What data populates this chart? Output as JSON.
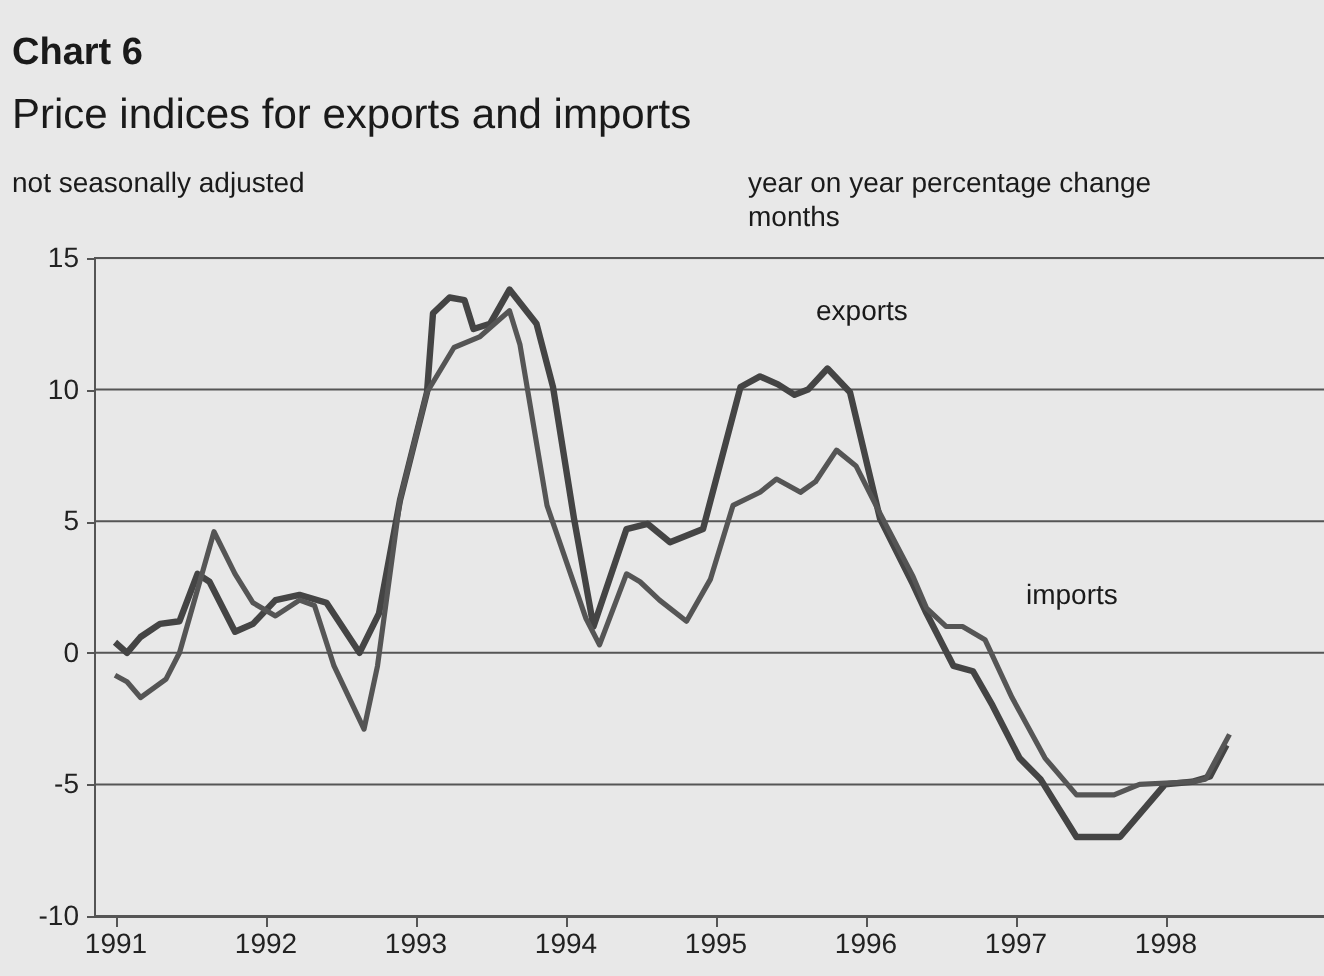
{
  "chart_data": {
    "type": "line",
    "title": "Chart 6",
    "subtitle": "Price indices for exports and imports",
    "annotations": [
      "not seasonally adjusted",
      "year on year percentage change",
      "months",
      "exports",
      "imports"
    ],
    "series": [
      {
        "color": "#444444",
        "x": [
          1991.0,
          1991.08,
          1991.17,
          1991.3,
          1991.43,
          1991.55,
          1991.63,
          1991.8,
          1991.92,
          1992.07,
          1992.23,
          1992.41,
          1992.63,
          1992.76,
          1992.9,
          1993.08,
          1993.12,
          1993.23,
          1993.33,
          1993.39,
          1993.5,
          1993.63,
          1993.81,
          1993.92,
          1994.06,
          1994.19,
          1994.41,
          1994.55,
          1994.7,
          1994.92,
          1995.17,
          1995.3,
          1995.42,
          1995.53,
          1995.62,
          1995.75,
          1995.9,
          1996.1,
          1996.32,
          1996.41,
          1996.59,
          1996.72,
          1996.85,
          1997.03,
          1997.17,
          1997.41,
          1997.7,
          1998.0,
          1998.18,
          1998.3,
          1998.41
        ],
        "values": [
          0.4,
          0.0,
          0.6,
          1.1,
          1.2,
          3.0,
          2.7,
          0.8,
          1.1,
          2.0,
          2.2,
          1.9,
          0.0,
          1.5,
          5.8,
          9.9,
          12.9,
          13.5,
          13.4,
          12.3,
          12.5,
          13.8,
          12.5,
          10.1,
          5.1,
          1.0,
          4.7,
          4.9,
          4.2,
          4.7,
          10.1,
          10.5,
          10.2,
          9.8,
          10.0,
          10.8,
          9.9,
          5.1,
          2.6,
          1.5,
          -0.5,
          -0.7,
          -2.0,
          -4.0,
          -4.8,
          -7.0,
          -7.0,
          -5.0,
          -4.9,
          -4.7,
          -3.5
        ]
      },
      {
        "color": "#555555",
        "x": [
          1991.0,
          1991.08,
          1991.17,
          1991.34,
          1991.43,
          1991.57,
          1991.66,
          1991.8,
          1991.92,
          1992.07,
          1992.23,
          1992.33,
          1992.46,
          1992.66,
          1992.75,
          1992.9,
          1993.08,
          1993.26,
          1993.43,
          1993.63,
          1993.7,
          1993.88,
          1994.14,
          1994.23,
          1994.41,
          1994.5,
          1994.63,
          1994.81,
          1994.97,
          1995.12,
          1995.3,
          1995.41,
          1995.57,
          1995.67,
          1995.81,
          1995.94,
          1996.1,
          1996.32,
          1996.41,
          1996.54,
          1996.65,
          1996.8,
          1996.98,
          1997.2,
          1997.41,
          1997.66,
          1997.83,
          1998.18,
          1998.27,
          1998.43
        ],
        "values": [
          -0.85,
          -1.1,
          -1.7,
          -1.0,
          0.0,
          2.8,
          4.6,
          3.0,
          1.9,
          1.4,
          2.0,
          1.8,
          -0.5,
          -2.9,
          -0.5,
          5.8,
          9.9,
          11.6,
          12.0,
          13.0,
          11.7,
          5.6,
          1.3,
          0.3,
          3.0,
          2.7,
          2.0,
          1.2,
          2.8,
          5.6,
          6.1,
          6.6,
          6.1,
          6.5,
          7.7,
          7.1,
          5.3,
          2.9,
          1.7,
          1.0,
          1.0,
          0.5,
          -1.7,
          -4.0,
          -5.4,
          -5.4,
          -5.0,
          -4.9,
          -4.8,
          -3.1
        ]
      }
    ],
    "xlim": [
      1990.86,
      1999.06
    ],
    "xticks": [
      1991,
      1992,
      1993,
      1994,
      1995,
      1996,
      1997,
      1998
    ],
    "ylim": [
      -10,
      15
    ],
    "yticks": [
      -10,
      -5,
      0,
      5,
      10,
      15
    ],
    "grid": "y",
    "marker": "none",
    "line_style": "solid"
  }
}
